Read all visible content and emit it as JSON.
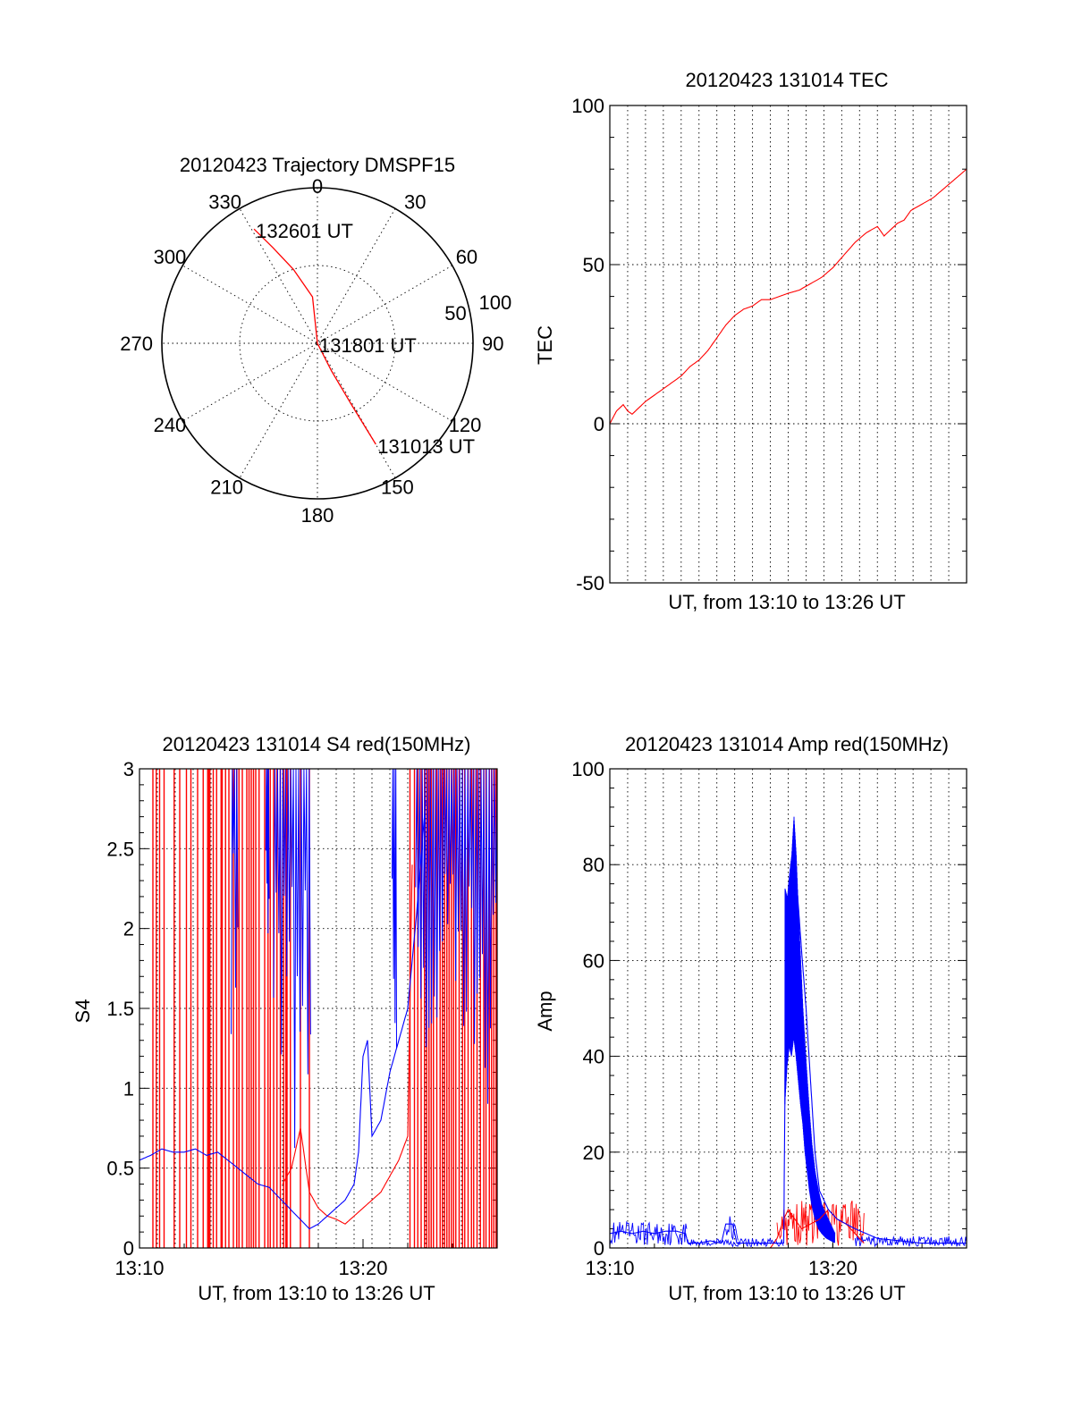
{
  "colors": {
    "red": "#ff0000",
    "blue": "#0000ff",
    "axis": "#000000"
  },
  "chart_data": [
    {
      "id": "trajectory",
      "type": "scatter",
      "subtype": "polar",
      "title": "20120423 Trajectory DMSPF15",
      "angle_labels": [
        "0",
        "30",
        "60",
        "90",
        "120",
        "150",
        "180",
        "210",
        "240",
        "270",
        "300",
        "330"
      ],
      "radius_labels": [
        "50",
        "100"
      ],
      "rlim": [
        0,
        100
      ],
      "grid": true,
      "series": [
        {
          "color": "red",
          "points": [
            [
              331,
              84
            ],
            [
              335,
              68
            ],
            [
              342,
              50
            ],
            [
              354,
              30
            ],
            [
              0,
              0
            ],
            [
              153,
              20
            ],
            [
              151,
              45
            ],
            [
              150,
              75
            ]
          ]
        }
      ],
      "annotations": [
        {
          "text": "132601 UT",
          "at": [
            331,
            84
          ]
        },
        {
          "text": "131801 UT",
          "at": [
            0,
            0
          ]
        },
        {
          "text": "131013 UT",
          "at": [
            150,
            75
          ]
        }
      ]
    },
    {
      "id": "tec",
      "type": "line",
      "title": "20120423 131014 TEC",
      "xlabel": "UT, from 13:10 to 13:26 UT",
      "ylabel": "TEC",
      "xlim": [
        0,
        16
      ],
      "ylim": [
        -50,
        100
      ],
      "yticks": [
        -50,
        0,
        50,
        100
      ],
      "grid": true,
      "series": [
        {
          "color": "red",
          "x": [
            0,
            0.3,
            0.6,
            0.8,
            1.0,
            1.3,
            1.6,
            2.0,
            2.4,
            2.8,
            3.2,
            3.6,
            4.0,
            4.4,
            4.8,
            5.2,
            5.6,
            6.0,
            6.4,
            6.8,
            7.2,
            7.6,
            8.0,
            8.5,
            9.0,
            9.5,
            10.0,
            10.5,
            11.0,
            11.5,
            12.0,
            12.3,
            12.6,
            12.9,
            13.2,
            13.5,
            14.0,
            14.5,
            15.0,
            15.5,
            16.0
          ],
          "y": [
            0,
            4,
            6,
            4,
            3,
            5,
            7,
            9,
            11,
            13,
            15,
            18,
            20,
            23,
            27,
            31,
            34,
            36,
            37,
            39,
            39,
            40,
            41,
            42,
            44,
            46,
            49,
            53,
            57,
            60,
            62,
            59,
            61,
            63,
            64,
            67,
            69,
            71,
            74,
            77,
            80
          ]
        }
      ]
    },
    {
      "id": "s4",
      "type": "line",
      "title": "20120423 131014 S4 red(150MHz)",
      "xlabel": "UT, from 13:10 to 13:26 UT",
      "ylabel": "S4",
      "xlim": [
        0,
        16
      ],
      "ylim": [
        0,
        3
      ],
      "xticks": [
        {
          "value": 0,
          "label": "13:10"
        },
        {
          "value": 10,
          "label": "13:20"
        }
      ],
      "yticks": [
        0,
        0.5,
        1,
        1.5,
        2,
        2.5,
        3
      ],
      "ytick_labels": [
        "0",
        "0.5",
        "1",
        "1.5",
        "2",
        "2.5",
        "3"
      ],
      "grid": true,
      "series": [
        {
          "color": "red",
          "x": [
            6.4,
            6.8,
            7.2,
            7.6,
            7.8,
            8.0,
            8.4,
            8.8,
            9.2,
            9.6,
            10.0,
            10.4,
            10.8,
            11.2,
            11.6,
            12.0,
            12.2
          ],
          "y": [
            0.4,
            0.5,
            0.75,
            0.35,
            0.3,
            0.25,
            0.2,
            0.18,
            0.15,
            0.2,
            0.25,
            0.3,
            0.35,
            0.45,
            0.55,
            0.7,
            2.4
          ]
        },
        {
          "color": "blue",
          "x": [
            0,
            0.5,
            1.0,
            1.5,
            2.0,
            2.5,
            3.0,
            3.5,
            5.3,
            5.8,
            7.6,
            8.0,
            8.4,
            8.8,
            9.2,
            9.6,
            9.8,
            10.0,
            10.2,
            10.4,
            10.8,
            11.2,
            11.6,
            12.0,
            12.4,
            12.8
          ],
          "y": [
            0.55,
            0.58,
            0.62,
            0.6,
            0.6,
            0.62,
            0.58,
            0.6,
            0.4,
            0.38,
            0.12,
            0.15,
            0.2,
            0.25,
            0.3,
            0.4,
            0.6,
            1.2,
            1.3,
            0.7,
            0.8,
            1.1,
            1.3,
            1.5,
            2.1,
            2.8
          ]
        }
      ],
      "spikes_red_x": [
        0.6,
        0.75,
        0.9,
        1.1,
        1.55,
        1.8,
        2.1,
        2.3,
        2.6,
        2.85,
        3.05,
        3.1,
        3.15,
        3.3,
        3.45,
        3.65,
        3.7,
        3.85,
        4.0,
        4.2,
        4.35,
        4.45,
        4.6,
        4.8,
        4.9,
        5.0,
        5.1,
        5.2,
        5.35,
        5.6,
        5.75,
        5.85,
        6.0,
        6.15,
        6.3,
        6.45,
        6.55,
        6.6,
        6.75,
        7.2,
        7.6,
        12.1,
        12.3,
        12.45,
        12.6,
        12.75,
        12.85,
        12.95,
        13.05,
        13.15,
        13.3,
        13.45,
        13.55,
        13.65,
        13.75,
        13.85,
        13.95,
        14.05,
        14.15,
        14.3,
        14.45,
        14.55,
        14.7,
        14.85,
        14.95,
        15.1,
        15.25,
        15.4,
        15.5,
        15.65,
        15.75,
        15.85,
        15.95
      ],
      "blue_bands": [
        [
          4.1,
          4.4,
          1.3
        ],
        [
          5.65,
          5.8,
          1.3
        ],
        [
          6.0,
          7.65,
          0.6
        ],
        [
          11.3,
          11.5,
          1.1
        ],
        [
          12.35,
          16.0,
          0.9
        ]
      ]
    },
    {
      "id": "amp",
      "type": "line",
      "title": "20120423 131014 Amp red(150MHz)",
      "xlabel": "UT, from 13:10 to 13:26 UT",
      "ylabel": "Amp",
      "xlim": [
        0,
        16
      ],
      "ylim": [
        0,
        100
      ],
      "xticks": [
        {
          "value": 0,
          "label": "13:10"
        },
        {
          "value": 10,
          "label": "13:20"
        }
      ],
      "yticks": [
        0,
        20,
        40,
        60,
        80,
        100
      ],
      "grid": true,
      "series": [
        {
          "color": "red",
          "x": [
            7.2,
            7.5,
            7.8,
            8.0,
            8.3,
            8.6,
            9.0,
            9.4,
            9.8,
            10.2,
            10.6,
            11.0,
            11.4
          ],
          "y": [
            0,
            2,
            6,
            8,
            6,
            4,
            5,
            6,
            8,
            6,
            5,
            3,
            1
          ]
        },
        {
          "color": "blue",
          "x": [
            0,
            0.5,
            1.0,
            1.5,
            2.0,
            2.5,
            3.0,
            3.4,
            3.5,
            4.0,
            4.5,
            5.0,
            5.2,
            5.5,
            5.7,
            6.0,
            6.5,
            7.0,
            7.5,
            7.8,
            7.9,
            8.1,
            8.2,
            8.4,
            8.6,
            8.8,
            9.0,
            9.2,
            9.4,
            9.8,
            10.2,
            10.6,
            11.0,
            11.5,
            12.0,
            13.0,
            14.0,
            15.0,
            16.0
          ],
          "y": [
            3,
            3.5,
            3,
            3.5,
            3,
            3.5,
            3.5,
            3,
            1,
            1,
            1.5,
            1,
            5,
            5,
            1,
            1,
            1,
            1,
            1,
            1,
            60,
            65,
            70,
            75,
            62,
            50,
            35,
            20,
            12,
            8,
            6,
            5,
            4,
            3,
            2,
            1.5,
            1,
            1,
            1
          ]
        }
      ],
      "noise_bands": [
        {
          "color": "blue",
          "x0": 0.0,
          "x1": 3.45,
          "y0": 0.5,
          "y1": 5.5
        },
        {
          "color": "blue",
          "x0": 5.2,
          "x1": 5.75,
          "y0": 1.5,
          "y1": 7.0
        },
        {
          "color": "blue",
          "x0": 3.45,
          "x1": 7.8,
          "y0": 0.3,
          "y1": 2.0
        },
        {
          "color": "red",
          "x0": 7.5,
          "x1": 11.4,
          "y0": 0.5,
          "y1": 10.0
        },
        {
          "color": "blue",
          "x0": 11.0,
          "x1": 16.0,
          "y0": 0.3,
          "y1": 2.5
        }
      ],
      "peak_envelope": {
        "color": "blue",
        "x": [
          7.85,
          7.95,
          8.05,
          8.15,
          8.25,
          8.35,
          8.45,
          8.55,
          8.65,
          8.75,
          8.85,
          8.95,
          9.05,
          9.2,
          9.35,
          9.5,
          9.7,
          9.9,
          10.1
        ],
        "ylo": [
          30,
          38,
          42,
          40,
          44,
          40,
          35,
          30,
          26,
          20,
          16,
          12,
          9,
          6,
          4,
          3,
          2,
          1.5,
          1
        ],
        "yhi": [
          75,
          73,
          78,
          82,
          90,
          82,
          70,
          60,
          50,
          42,
          35,
          28,
          22,
          16,
          12,
          9,
          7,
          5,
          3
        ]
      }
    }
  ]
}
